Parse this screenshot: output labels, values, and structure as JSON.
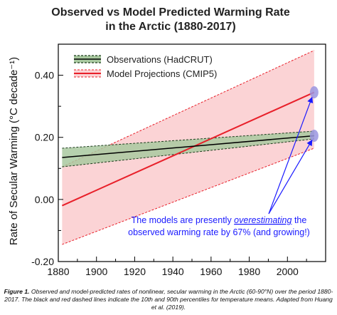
{
  "chart_data": {
    "type": "line",
    "title": [
      "Observed vs Model Predicted Warming Rate",
      "in the Arctic (1880-2017)"
    ],
    "ylabel": "Rate of Secular Warming (°C decade⁻¹)",
    "xlabel": "",
    "xlim": [
      1880,
      2020
    ],
    "ylim": [
      -0.2,
      0.5
    ],
    "x_ticks": [
      "1880",
      "1900",
      "1920",
      "1940",
      "1960",
      "1980",
      "2000"
    ],
    "y_ticks": [
      "-0.20",
      "0.00",
      "0.20",
      "0.40"
    ],
    "grid": false,
    "legend_position": "top-left",
    "series": [
      {
        "name": "Observations (HadCRUT)",
        "color": "#000000",
        "band_color": "#a9c9a0",
        "band_edge_color": "#1d3d1d",
        "x": [
          1882,
          2014
        ],
        "median": [
          0.135,
          0.205
        ],
        "p10": [
          0.105,
          0.195
        ],
        "p90": [
          0.165,
          0.22
        ]
      },
      {
        "name": "Model Projections (CMIP5)",
        "color": "#e8202a",
        "band_color": "#fbd3d5",
        "band_edge_color": "#e8202a",
        "x": [
          1882,
          2014
        ],
        "median": [
          -0.02,
          0.345
        ],
        "p10": [
          -0.145,
          0.165
        ],
        "p90": [
          0.105,
          0.48
        ]
      }
    ],
    "endpoint_markers": [
      {
        "x": 2014,
        "y": 0.345,
        "color": "#9a95e0"
      },
      {
        "x": 2014,
        "y": 0.205,
        "color": "#9a95e0"
      }
    ],
    "annotation": {
      "line1_pre": "The models are presently ",
      "line1_em": "overestimating",
      "line1_post": " the",
      "line2": "observed warming rate by 67% (and growing!)",
      "color": "#1a1aff"
    }
  },
  "caption": {
    "label": "Figure 1.",
    "text": " Observed and model-predicted rates of nonlinear, secular warming in the Arctic (60-90°N) over the period 1880-2017. The black and red dashed lines indicate the 10th and 90th percentiles for temperature means. Adapted from Huang et al. (2019)."
  }
}
